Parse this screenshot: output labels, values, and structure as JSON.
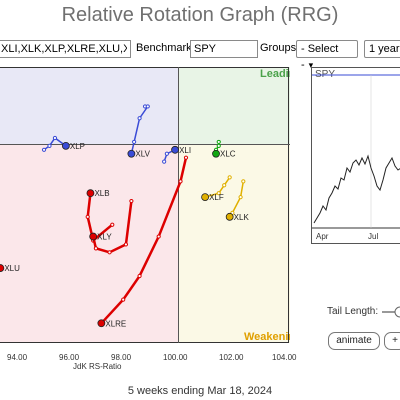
{
  "app": {
    "title": "Relative Rotation Graph (RRG)"
  },
  "toolbar": {
    "symbols_value": "XLI,XLK,XLP,XLRE,XLU,XLV,XL",
    "benchmark_label": "Benchmark:",
    "benchmark_value": "SPY",
    "groups_label": "Groups:",
    "groups_value": "- Select -",
    "period_value": "1 year"
  },
  "quadrants": {
    "leading": "Leading",
    "weakening": "Weakening",
    "colors": {
      "leading": "#e8f4e6",
      "improving": "#e8e8f6",
      "lagging": "#fbe7ea",
      "weakening": "#fbf9e6",
      "leading_text": "#4aa24a",
      "weakening_text": "#e0a000"
    }
  },
  "axis": {
    "x_title": "JdK RS-Ratio",
    "x_ticks": [
      "94.00",
      "96.00",
      "98.00",
      "100.00",
      "102.00",
      "104.00"
    ]
  },
  "chart_data": {
    "type": "scatter",
    "xlabel": "JdK RS-Ratio",
    "xlim": [
      92.0,
      104.5
    ],
    "ylim": [
      96.5,
      103.5
    ],
    "series": [
      {
        "name": "XLP",
        "color": "#3a4bd6",
        "points": [
          [
            95.1,
            101.4
          ],
          [
            95.3,
            101.5
          ],
          [
            95.5,
            101.7
          ],
          [
            95.9,
            101.5
          ]
        ]
      },
      {
        "name": "XLV",
        "color": "#3a4bd6",
        "points": [
          [
            98.8,
            102.5
          ],
          [
            98.9,
            102.5
          ],
          [
            98.6,
            102.2
          ],
          [
            98.4,
            101.6
          ],
          [
            98.3,
            101.3
          ]
        ]
      },
      {
        "name": "XLI",
        "color": "#3a4bd6",
        "points": [
          [
            99.5,
            101.1
          ],
          [
            99.6,
            101.3
          ],
          [
            99.9,
            101.4
          ]
        ]
      },
      {
        "name": "XLC",
        "color": "#11a611",
        "points": [
          [
            101.5,
            101.6
          ],
          [
            101.5,
            101.5
          ],
          [
            101.4,
            101.4
          ],
          [
            101.4,
            101.3
          ]
        ]
      },
      {
        "name": "XLF",
        "color": "#e0b000",
        "points": [
          [
            101.9,
            100.7
          ],
          [
            101.7,
            100.5
          ],
          [
            101.5,
            100.3
          ],
          [
            101.0,
            100.2
          ]
        ]
      },
      {
        "name": "XLK",
        "color": "#e0b000",
        "points": [
          [
            102.4,
            100.6
          ],
          [
            102.3,
            100.2
          ],
          [
            102.0,
            99.8
          ],
          [
            101.9,
            99.7
          ]
        ]
      },
      {
        "name": "XLB",
        "color": "#dd0000",
        "points": [
          [
            97.6,
            99.5
          ],
          [
            96.9,
            99.1
          ],
          [
            96.7,
            99.7
          ],
          [
            96.8,
            100.3
          ]
        ]
      },
      {
        "name": "XLY",
        "color": "#dd0000",
        "points": [
          [
            98.3,
            100.1
          ],
          [
            98.1,
            99.0
          ],
          [
            97.5,
            98.8
          ],
          [
            97.0,
            98.9
          ],
          [
            96.9,
            99.2
          ]
        ]
      },
      {
        "name": "XLU",
        "color": "#dd0000",
        "points": [
          [
            91.5,
            98.5
          ],
          [
            92.0,
            98.6
          ],
          [
            92.5,
            98.3
          ],
          [
            93.2,
            98.1
          ],
          [
            93.5,
            98.4
          ]
        ]
      },
      {
        "name": "XLRE",
        "color": "#dd0000",
        "points": [
          [
            100.3,
            101.2
          ],
          [
            100.1,
            100.6
          ],
          [
            99.3,
            99.2
          ],
          [
            98.6,
            98.2
          ],
          [
            98.0,
            97.6
          ],
          [
            97.2,
            97.0
          ]
        ]
      }
    ]
  },
  "benchmark_chart": {
    "label": "SPY",
    "x_ticks": [
      "Apr",
      "Jul"
    ]
  },
  "controls": {
    "tail_label": "Tail Length:",
    "animate_label": "animate",
    "plus_label": "+"
  },
  "footer": {
    "text": "5 weeks ending Mar 18, 2024"
  }
}
